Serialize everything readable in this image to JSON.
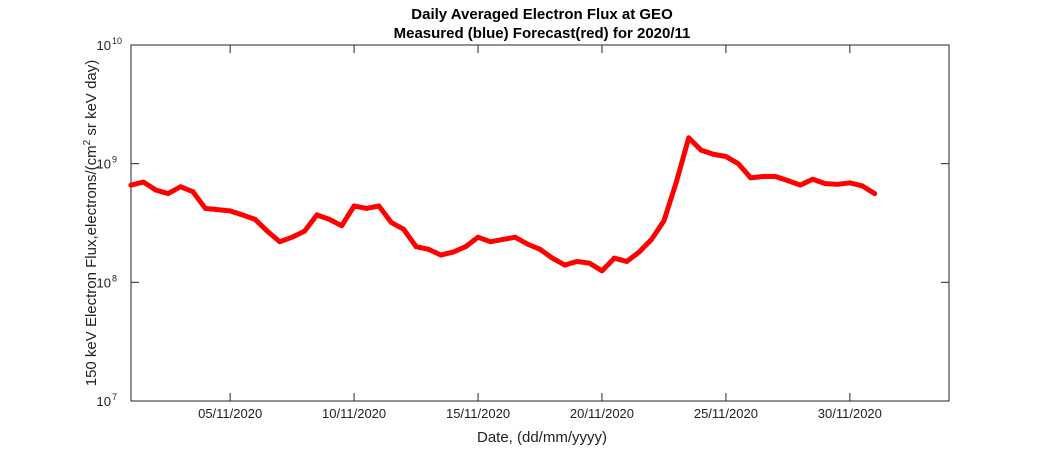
{
  "chart_data": {
    "type": "scatter",
    "title": "Daily Averaged Electron Flux at GEO",
    "subtitle": "Measured (blue) Forecast(red) for 2020/11",
    "xlabel": "Date, (dd/mm/yyyy)",
    "ylabel": "150 keV Electron Flux,electrons/(cm",
    "ylabel_sup": "2",
    "ylabel_suffix": " sr keV day)",
    "y_scale": "log",
    "ylim": [
      10000000,
      10000000000
    ],
    "xlim": [
      "2020-11-01",
      "2020-12-04"
    ],
    "y_ticks": [
      {
        "value": 10000000,
        "base": "10",
        "exp": "7"
      },
      {
        "value": 100000000,
        "base": "10",
        "exp": "8"
      },
      {
        "value": 1000000000,
        "base": "10",
        "exp": "9"
      },
      {
        "value": 10000000000,
        "base": "10",
        "exp": "10"
      }
    ],
    "x_ticks": [
      {
        "date": "2020-11-05",
        "label": "05/11/2020"
      },
      {
        "date": "2020-11-10",
        "label": "10/11/2020"
      },
      {
        "date": "2020-11-15",
        "label": "15/11/2020"
      },
      {
        "date": "2020-11-20",
        "label": "20/11/2020"
      },
      {
        "date": "2020-11-25",
        "label": "25/11/2020"
      },
      {
        "date": "2020-11-30",
        "label": "30/11/2020"
      }
    ],
    "grid": false,
    "series": [
      {
        "color": "#ff0000",
        "marker": "dot",
        "points": [
          [
            "2020-11-01T00:00",
            660000000
          ],
          [
            "2020-11-01T12:00",
            700000000
          ],
          [
            "2020-11-02T00:00",
            600000000
          ],
          [
            "2020-11-02T12:00",
            560000000
          ],
          [
            "2020-11-03T00:00",
            640000000
          ],
          [
            "2020-11-03T12:00",
            580000000
          ],
          [
            "2020-11-04T00:00",
            420000000
          ],
          [
            "2020-11-04T12:00",
            410000000
          ],
          [
            "2020-11-05T00:00",
            400000000
          ],
          [
            "2020-11-05T12:00",
            370000000
          ],
          [
            "2020-11-06T00:00",
            340000000
          ],
          [
            "2020-11-06T12:00",
            270000000
          ],
          [
            "2020-11-07T00:00",
            220000000
          ],
          [
            "2020-11-07T12:00",
            240000000
          ],
          [
            "2020-11-08T00:00",
            270000000
          ],
          [
            "2020-11-08T12:00",
            370000000
          ],
          [
            "2020-11-09T00:00",
            340000000
          ],
          [
            "2020-11-09T12:00",
            300000000
          ],
          [
            "2020-11-10T00:00",
            440000000
          ],
          [
            "2020-11-10T12:00",
            420000000
          ],
          [
            "2020-11-11T00:00",
            440000000
          ],
          [
            "2020-11-11T12:00",
            320000000
          ],
          [
            "2020-11-12T00:00",
            280000000
          ],
          [
            "2020-11-12T12:00",
            200000000
          ],
          [
            "2020-11-13T00:00",
            190000000
          ],
          [
            "2020-11-13T12:00",
            170000000
          ],
          [
            "2020-11-14T00:00",
            180000000
          ],
          [
            "2020-11-14T12:00",
            200000000
          ],
          [
            "2020-11-15T00:00",
            240000000
          ],
          [
            "2020-11-15T12:00",
            220000000
          ],
          [
            "2020-11-16T00:00",
            230000000
          ],
          [
            "2020-11-16T12:00",
            240000000
          ],
          [
            "2020-11-17T00:00",
            210000000
          ],
          [
            "2020-11-17T12:00",
            190000000
          ],
          [
            "2020-11-18T00:00",
            160000000
          ],
          [
            "2020-11-18T12:00",
            140000000
          ],
          [
            "2020-11-19T00:00",
            150000000
          ],
          [
            "2020-11-19T12:00",
            145000000
          ],
          [
            "2020-11-20T00:00",
            125000000
          ],
          [
            "2020-11-20T12:00",
            160000000
          ],
          [
            "2020-11-21T00:00",
            150000000
          ],
          [
            "2020-11-21T12:00",
            180000000
          ],
          [
            "2020-11-22T00:00",
            230000000
          ],
          [
            "2020-11-22T12:00",
            330000000
          ],
          [
            "2020-11-23T00:00",
            700000000
          ],
          [
            "2020-11-23T12:00",
            1650000000
          ],
          [
            "2020-11-24T00:00",
            1300000000
          ],
          [
            "2020-11-24T12:00",
            1200000000
          ],
          [
            "2020-11-25T00:00",
            1150000000
          ],
          [
            "2020-11-25T12:00",
            1000000000
          ],
          [
            "2020-11-26T00:00",
            760000000
          ],
          [
            "2020-11-26T12:00",
            780000000
          ],
          [
            "2020-11-27T00:00",
            780000000
          ],
          [
            "2020-11-27T12:00",
            720000000
          ],
          [
            "2020-11-28T00:00",
            660000000
          ],
          [
            "2020-11-28T12:00",
            740000000
          ],
          [
            "2020-11-29T00:00",
            680000000
          ],
          [
            "2020-11-29T12:00",
            670000000
          ],
          [
            "2020-11-30T00:00",
            690000000
          ],
          [
            "2020-11-30T12:00",
            650000000
          ],
          [
            "2020-12-01T00:00",
            560000000
          ]
        ]
      }
    ]
  }
}
